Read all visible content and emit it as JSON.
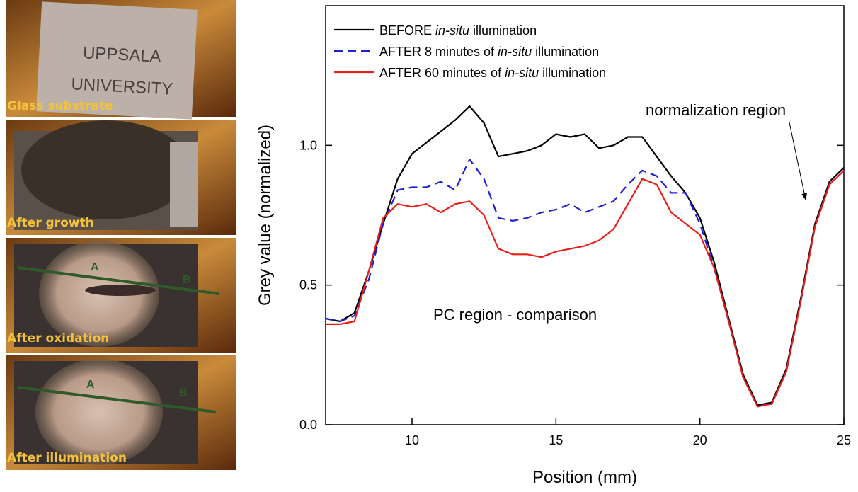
{
  "photos": [
    {
      "label": "Glass substrate",
      "text": [
        "UPPSALA",
        "UNIVERSITY"
      ]
    },
    {
      "label": "After growth"
    },
    {
      "label": "After oxidation",
      "markers": [
        "A",
        "B"
      ]
    },
    {
      "label": "After illumination",
      "markers": [
        "A",
        "B"
      ]
    }
  ],
  "chart_data": {
    "type": "line",
    "xlabel": "Position (mm)",
    "ylabel": "Grey value (normalized)",
    "xlim": [
      7,
      25
    ],
    "ylim": [
      0,
      1.5
    ],
    "xticks": [
      10,
      15,
      20,
      25
    ],
    "yticks": [
      {
        "value": 0,
        "label": "0.0"
      },
      0.5,
      {
        "value": 1,
        "label": "1.0"
      }
    ],
    "grid": false,
    "legend": "upper left",
    "annotations": [
      "normalization region",
      "PC region - comparison"
    ],
    "x": [
      7,
      7.5,
      8,
      8.5,
      9,
      9.5,
      10,
      10.5,
      11,
      11.5,
      12,
      12.5,
      13,
      13.5,
      14,
      14.5,
      15,
      15.5,
      16,
      16.5,
      17,
      17.5,
      18,
      18.5,
      19,
      19.5,
      20,
      20.5,
      21,
      21.5,
      22,
      22.5,
      23,
      23.5,
      24,
      24.5,
      25
    ],
    "series": [
      {
        "name": [
          {
            "text": "BEFORE "
          },
          {
            "text": "in-situ",
            "italic": true
          },
          {
            "text": " illumination"
          }
        ],
        "color": "#000000",
        "dash": false,
        "values": [
          0.38,
          0.37,
          0.4,
          0.55,
          0.72,
          0.88,
          0.97,
          1.01,
          1.05,
          1.09,
          1.14,
          1.08,
          0.96,
          0.97,
          0.98,
          1.0,
          1.04,
          1.03,
          1.04,
          0.99,
          1.0,
          1.03,
          1.03,
          0.96,
          0.89,
          0.83,
          0.74,
          0.58,
          0.38,
          0.18,
          0.07,
          0.08,
          0.2,
          0.45,
          0.72,
          0.87,
          0.92
        ]
      },
      {
        "name": [
          {
            "text": "AFTER 8 minutes of "
          },
          {
            "text": "in-situ",
            "italic": true
          },
          {
            "text": " illumination"
          }
        ],
        "color": "#1f1fd6",
        "dash": true,
        "values": [
          0.38,
          0.37,
          0.39,
          0.52,
          0.72,
          0.84,
          0.85,
          0.85,
          0.87,
          0.84,
          0.95,
          0.88,
          0.74,
          0.73,
          0.74,
          0.76,
          0.77,
          0.79,
          0.76,
          0.78,
          0.8,
          0.86,
          0.91,
          0.89,
          0.83,
          0.83,
          0.72,
          0.56,
          0.37,
          0.17,
          0.065,
          0.075,
          0.19,
          0.44,
          0.71,
          0.86,
          0.91
        ]
      },
      {
        "name": [
          {
            "text": "AFTER 60 minutes of "
          },
          {
            "text": "in-situ",
            "italic": true
          },
          {
            "text": " illumination"
          }
        ],
        "color": "#e8201a",
        "dash": false,
        "values": [
          0.36,
          0.36,
          0.37,
          0.55,
          0.74,
          0.79,
          0.78,
          0.79,
          0.76,
          0.79,
          0.8,
          0.75,
          0.63,
          0.61,
          0.61,
          0.6,
          0.62,
          0.63,
          0.64,
          0.66,
          0.7,
          0.79,
          0.88,
          0.86,
          0.76,
          0.72,
          0.68,
          0.56,
          0.37,
          0.17,
          0.065,
          0.075,
          0.19,
          0.44,
          0.71,
          0.86,
          0.91
        ]
      }
    ]
  }
}
